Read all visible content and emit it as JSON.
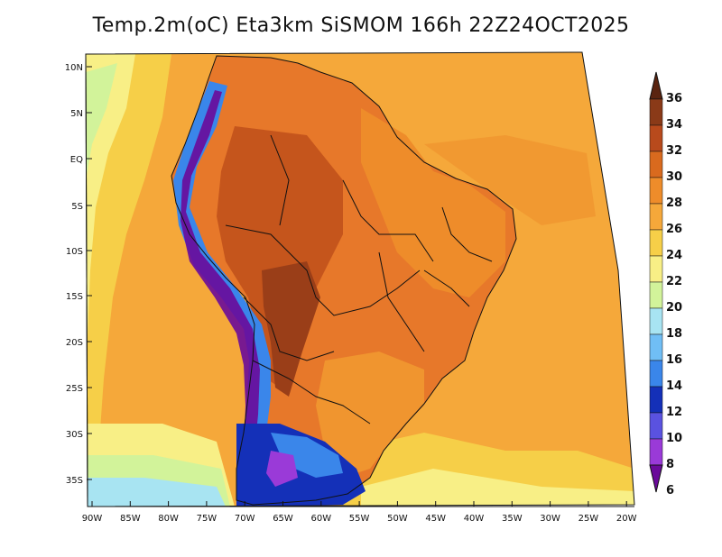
{
  "title": "Temp.2m(oC) Eta3km SiSMOM 166h 22Z24OCT2025",
  "lat_ticks": [
    "10N",
    "5N",
    "EQ",
    "5S",
    "10S",
    "15S",
    "20S",
    "25S",
    "30S",
    "35S"
  ],
  "lon_ticks": [
    "90W",
    "85W",
    "80W",
    "75W",
    "70W",
    "65W",
    "60W",
    "55W",
    "50W",
    "45W",
    "40W",
    "35W",
    "30W",
    "25W",
    "20W"
  ],
  "colorbar": {
    "unit": "oC",
    "labels": [
      "36",
      "34",
      "32",
      "30",
      "28",
      "26",
      "24",
      "22",
      "20",
      "18",
      "16",
      "14",
      "12",
      "10",
      "8",
      "6"
    ],
    "colors_top_to_bottom": [
      "#5a2410",
      "#8a3a18",
      "#b84a1c",
      "#d96a1e",
      "#ee8c2a",
      "#f5a83a",
      "#f6cf48",
      "#f8ef86",
      "#d2f39a",
      "#a8e4f2",
      "#70bef5",
      "#3a86ea",
      "#1430b8",
      "#5a52e0",
      "#9a3ad8",
      "#6a0a9a"
    ]
  },
  "colors": {
    "ocean_warm": "#f5a83a",
    "ocean_mid": "#f6cf48",
    "ocean_cool": "#f8ef86",
    "land_hot": "#d96a1e",
    "land_warm": "#ee8c2a",
    "andes_cold": "#3a86ea",
    "andes_coldest": "#6a0a9a",
    "patagonia": "#1430b8",
    "boundary": "#111111"
  }
}
